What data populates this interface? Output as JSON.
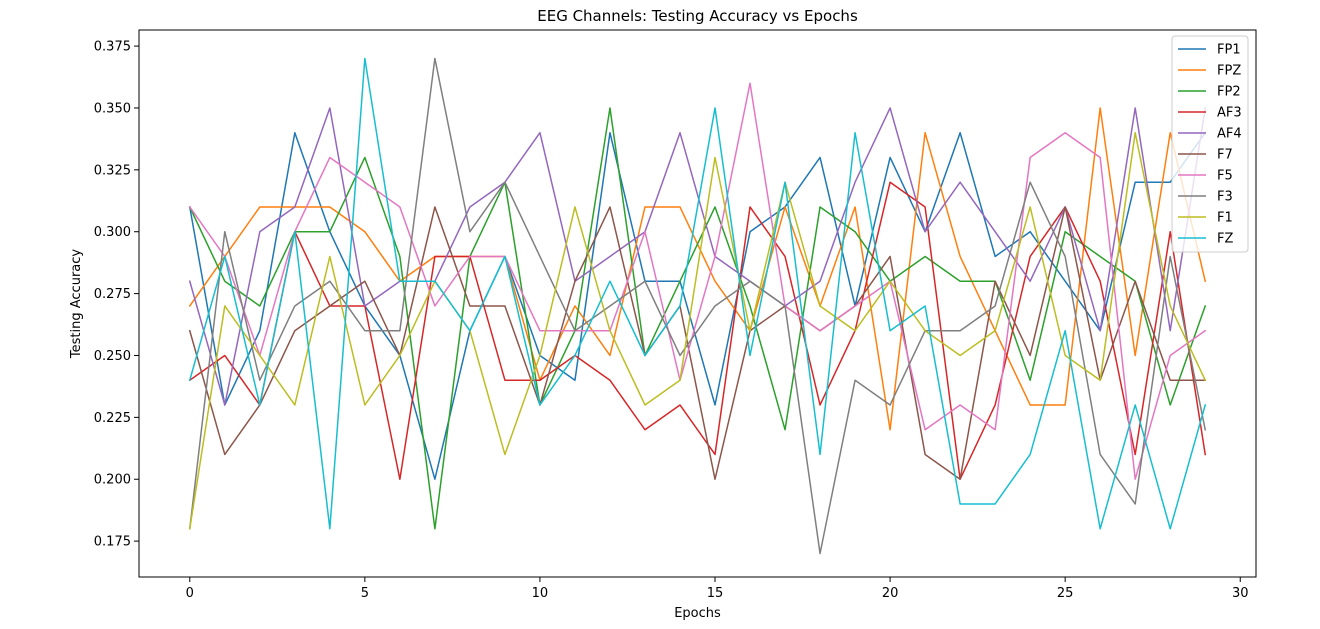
{
  "chart_data": {
    "type": "line",
    "title": "EEG Channels: Testing Accuracy vs Epochs",
    "xlabel": "Epochs",
    "ylabel": "Testing Accuracy",
    "xlim": [
      -1.45,
      30.45
    ],
    "ylim": [
      0.1605,
      0.3815
    ],
    "xticks": [
      0,
      5,
      10,
      15,
      20,
      25,
      30
    ],
    "yticks": [
      0.175,
      0.2,
      0.225,
      0.25,
      0.275,
      0.3,
      0.325,
      0.35,
      0.375
    ],
    "ytick_labels": [
      "0.175",
      "0.200",
      "0.225",
      "0.250",
      "0.275",
      "0.300",
      "0.325",
      "0.350",
      "0.375"
    ],
    "grid": false,
    "legend_position": "upper right",
    "x": [
      0,
      1,
      2,
      3,
      4,
      5,
      6,
      7,
      8,
      9,
      10,
      11,
      12,
      13,
      14,
      15,
      16,
      17,
      18,
      19,
      20,
      21,
      22,
      23,
      24,
      25,
      26,
      27,
      28,
      29
    ],
    "series": [
      {
        "name": "FP1",
        "color": "#1f77b4",
        "values": [
          0.31,
          0.23,
          0.26,
          0.34,
          0.3,
          0.27,
          0.25,
          0.2,
          0.26,
          0.29,
          0.25,
          0.24,
          0.34,
          0.28,
          0.28,
          0.23,
          0.3,
          0.31,
          0.33,
          0.27,
          0.33,
          0.3,
          0.34,
          0.29,
          0.3,
          0.28,
          0.26,
          0.32,
          0.32,
          0.34
        ]
      },
      {
        "name": "FPZ",
        "color": "#ff7f0e",
        "values": [
          0.27,
          0.29,
          0.31,
          0.31,
          0.31,
          0.3,
          0.28,
          0.29,
          0.29,
          0.29,
          0.24,
          0.27,
          0.25,
          0.31,
          0.31,
          0.28,
          0.26,
          0.31,
          0.27,
          0.31,
          0.22,
          0.34,
          0.29,
          0.26,
          0.23,
          0.23,
          0.35,
          0.25,
          0.34,
          0.28
        ]
      },
      {
        "name": "FP2",
        "color": "#2ca02c",
        "values": [
          0.31,
          0.28,
          0.27,
          0.3,
          0.3,
          0.33,
          0.29,
          0.18,
          0.29,
          0.32,
          0.23,
          0.26,
          0.35,
          0.25,
          0.28,
          0.31,
          0.27,
          0.22,
          0.31,
          0.3,
          0.28,
          0.29,
          0.28,
          0.28,
          0.24,
          0.3,
          0.29,
          0.28,
          0.23,
          0.27
        ]
      },
      {
        "name": "AF3",
        "color": "#d62728",
        "values": [
          0.24,
          0.25,
          0.23,
          0.3,
          0.27,
          0.27,
          0.2,
          0.29,
          0.29,
          0.24,
          0.24,
          0.25,
          0.24,
          0.22,
          0.23,
          0.21,
          0.31,
          0.29,
          0.23,
          0.26,
          0.32,
          0.31,
          0.2,
          0.23,
          0.29,
          0.31,
          0.28,
          0.21,
          0.3,
          0.21
        ]
      },
      {
        "name": "AF4",
        "color": "#9467bd",
        "values": [
          0.28,
          0.23,
          0.3,
          0.31,
          0.35,
          0.27,
          0.28,
          0.28,
          0.31,
          0.32,
          0.34,
          0.28,
          0.29,
          0.3,
          0.34,
          0.29,
          0.28,
          0.27,
          0.28,
          0.32,
          0.35,
          0.3,
          0.32,
          0.3,
          0.28,
          0.31,
          0.26,
          0.35,
          0.26,
          0.35
        ]
      },
      {
        "name": "F7",
        "color": "#8c564b",
        "values": [
          0.26,
          0.21,
          0.23,
          0.26,
          0.27,
          0.28,
          0.25,
          0.31,
          0.27,
          0.27,
          0.23,
          0.28,
          0.31,
          0.25,
          0.27,
          0.2,
          0.26,
          0.27,
          0.26,
          0.27,
          0.29,
          0.21,
          0.2,
          0.28,
          0.25,
          0.31,
          0.24,
          0.28,
          0.24,
          0.24
        ]
      },
      {
        "name": "F5",
        "color": "#e377c2",
        "values": [
          0.31,
          0.29,
          0.25,
          0.3,
          0.33,
          0.32,
          0.31,
          0.27,
          0.29,
          0.29,
          0.26,
          0.26,
          0.26,
          0.3,
          0.24,
          0.29,
          0.36,
          0.27,
          0.26,
          0.27,
          0.28,
          0.22,
          0.23,
          0.22,
          0.33,
          0.34,
          0.33,
          0.2,
          0.25,
          0.26
        ]
      },
      {
        "name": "F3",
        "color": "#7f7f7f",
        "values": [
          0.18,
          0.3,
          0.24,
          0.27,
          0.28,
          0.26,
          0.26,
          0.37,
          0.3,
          0.32,
          0.29,
          0.26,
          0.27,
          0.28,
          0.25,
          0.27,
          0.28,
          0.27,
          0.17,
          0.24,
          0.23,
          0.26,
          0.26,
          0.27,
          0.32,
          0.29,
          0.21,
          0.19,
          0.29,
          0.22
        ]
      },
      {
        "name": "F1",
        "color": "#bcbd22",
        "values": [
          0.18,
          0.27,
          0.25,
          0.23,
          0.29,
          0.23,
          0.25,
          0.28,
          0.26,
          0.21,
          0.25,
          0.31,
          0.26,
          0.23,
          0.24,
          0.33,
          0.26,
          0.32,
          0.27,
          0.26,
          0.28,
          0.26,
          0.25,
          0.26,
          0.31,
          0.25,
          0.24,
          0.34,
          0.27,
          0.24
        ]
      },
      {
        "name": "FZ",
        "color": "#17becf",
        "values": [
          0.24,
          0.29,
          0.23,
          0.3,
          0.18,
          0.37,
          0.28,
          0.28,
          0.26,
          0.29,
          0.23,
          0.25,
          0.28,
          0.25,
          0.27,
          0.35,
          0.25,
          0.32,
          0.21,
          0.34,
          0.26,
          0.27,
          0.19,
          0.19,
          0.21,
          0.26,
          0.18,
          0.23,
          0.18,
          0.23
        ]
      }
    ]
  }
}
